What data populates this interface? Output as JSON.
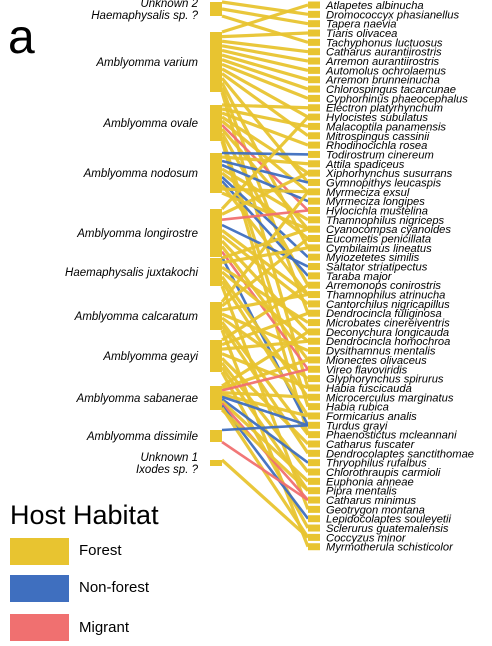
{
  "panel_label": "a",
  "legend": {
    "title": "Host Habitat",
    "items": [
      {
        "label": "Forest",
        "color": "#E8C430"
      },
      {
        "label": "Non-forest",
        "color": "#3F6FBF"
      },
      {
        "label": "Migrant",
        "color": "#F07070"
      }
    ]
  },
  "ticks": [
    {
      "id": "unk2",
      "lines": [
        "Unknown 2",
        "Haemaphysalis sp. ?"
      ]
    },
    {
      "id": "varium",
      "lines": [
        "Amblyomma varium"
      ]
    },
    {
      "id": "ovale",
      "lines": [
        "Amblyomma ovale"
      ]
    },
    {
      "id": "nodosum",
      "lines": [
        "Amblyomma nodosum"
      ]
    },
    {
      "id": "longirostre",
      "lines": [
        "Amblyomma longirostre"
      ]
    },
    {
      "id": "juxtakochi",
      "lines": [
        "Haemaphysalis juxtakochi"
      ]
    },
    {
      "id": "calcaratum",
      "lines": [
        "Amblyomma calcaratum"
      ]
    },
    {
      "id": "geayi",
      "lines": [
        "Amblyomma geayi"
      ]
    },
    {
      "id": "sabanerae",
      "lines": [
        "Amblyomma sabanerae"
      ]
    },
    {
      "id": "dissimile",
      "lines": [
        "Amblyomma dissimile"
      ]
    },
    {
      "id": "unk1",
      "lines": [
        "Unknown 1",
        "Ixodes sp. ?"
      ]
    }
  ],
  "hosts": [
    "Atlapetes albinucha",
    "Dromococcyx phasianellus",
    "Tapera naevia",
    "Tiaris olivacea",
    "Tachyphonus luctuosus",
    "Catharus aurantiirostris",
    "Arremon aurantiirostris",
    "Automolus ochrolaemus",
    "Arremon brunneinucha",
    "Chlorospingus tacarcunae",
    "Cyphorhinus phaeocephalus",
    "Electron platyrhynchum",
    "Hylocistes subulatus",
    "Malacoptila panamensis",
    "Mitrospingus cassinii",
    "Rhodinocichla rosea",
    "Todirostrum cinereum",
    "Attila spadiceus",
    "Xiphorhynchus susurrans",
    "Gymnopithys leucaspis",
    "Myrmeciza exsul",
    "Myrmeciza longipes",
    "Hylocichla mustelina",
    "Thamnophilus nigriceps",
    "Cyanocompsa cyanoides",
    "Eucometis penicillata",
    "Cymbilaimus lineatus",
    "Myiozetetes similis",
    "Saltator striatipectus",
    "Taraba major",
    "Arremonops conirostris",
    "Thamnophilus atrinucha",
    "Cantorchilus nigricapillus",
    "Dendrocincla fuliginosa",
    "Microbates cinereiventris",
    "Deconychura longicauda",
    "Dendrocincla homochroa",
    "Dysithamnus mentalis",
    "Mionectes olivaceus",
    "Vireo flavoviridis",
    "Glyphorynchus spirurus",
    "Habia fuscicauda",
    "Microcerculus marginatus",
    "Habia rubica",
    "Formicarius analis",
    "Turdus grayi",
    "Phaenostictus mcleannani",
    "Catharus fuscater",
    "Dendrocolaptes sanctithomae",
    "Thryophilus rufalbus",
    "Chlorothraupis carmioli",
    "Euphonia anneae",
    "Pipra mentalis",
    "Catharus minimus",
    "Geotrygon montana",
    "Lepidocolaptes souleyetii",
    "Sclerurus guatemalensis",
    "Coccyzus minor",
    "Myrmotherula schisticolor"
  ],
  "links": [
    {
      "t": "unk2",
      "h": 1,
      "c": "F"
    },
    {
      "t": "unk2",
      "h": 2,
      "c": "F"
    },
    {
      "t": "unk2",
      "h": 4,
      "c": "F"
    },
    {
      "t": "varium",
      "h": 0,
      "c": "F"
    },
    {
      "t": "varium",
      "h": 3,
      "c": "F"
    },
    {
      "t": "varium",
      "h": 5,
      "c": "F"
    },
    {
      "t": "varium",
      "h": 6,
      "c": "F"
    },
    {
      "t": "varium",
      "h": 7,
      "c": "F"
    },
    {
      "t": "varium",
      "h": 8,
      "c": "F"
    },
    {
      "t": "varium",
      "h": 9,
      "c": "F"
    },
    {
      "t": "varium",
      "h": 10,
      "c": "F"
    },
    {
      "t": "varium",
      "h": 12,
      "c": "F"
    },
    {
      "t": "varium",
      "h": 14,
      "c": "F"
    },
    {
      "t": "varium",
      "h": 19,
      "c": "F"
    },
    {
      "t": "varium",
      "h": 26,
      "c": "F"
    },
    {
      "t": "varium",
      "h": 33,
      "c": "F"
    },
    {
      "t": "varium",
      "h": 41,
      "c": "F"
    },
    {
      "t": "ovale",
      "h": 11,
      "c": "F"
    },
    {
      "t": "ovale",
      "h": 13,
      "c": "F"
    },
    {
      "t": "ovale",
      "h": 15,
      "c": "F"
    },
    {
      "t": "ovale",
      "h": 18,
      "c": "F"
    },
    {
      "t": "ovale",
      "h": 20,
      "c": "F"
    },
    {
      "t": "ovale",
      "h": 22,
      "c": "M"
    },
    {
      "t": "ovale",
      "h": 24,
      "c": "F"
    },
    {
      "t": "ovale",
      "h": 30,
      "c": "F"
    },
    {
      "t": "ovale",
      "h": 43,
      "c": "F"
    },
    {
      "t": "ovale",
      "h": 46,
      "c": "F"
    },
    {
      "t": "nodosum",
      "h": 16,
      "c": "N"
    },
    {
      "t": "nodosum",
      "h": 17,
      "c": "F"
    },
    {
      "t": "nodosum",
      "h": 19,
      "c": "N"
    },
    {
      "t": "nodosum",
      "h": 21,
      "c": "N"
    },
    {
      "t": "nodosum",
      "h": 23,
      "c": "F"
    },
    {
      "t": "nodosum",
      "h": 25,
      "c": "F"
    },
    {
      "t": "nodosum",
      "h": 27,
      "c": "N"
    },
    {
      "t": "nodosum",
      "h": 29,
      "c": "N"
    },
    {
      "t": "nodosum",
      "h": 31,
      "c": "F"
    },
    {
      "t": "nodosum",
      "h": 20,
      "c": "F"
    },
    {
      "t": "nodosum",
      "h": 24,
      "c": "F"
    },
    {
      "t": "longirostre",
      "h": 12,
      "c": "F"
    },
    {
      "t": "longirostre",
      "h": 18,
      "c": "F"
    },
    {
      "t": "longirostre",
      "h": 22,
      "c": "M"
    },
    {
      "t": "longirostre",
      "h": 28,
      "c": "N"
    },
    {
      "t": "longirostre",
      "h": 31,
      "c": "F"
    },
    {
      "t": "longirostre",
      "h": 32,
      "c": "F"
    },
    {
      "t": "longirostre",
      "h": 35,
      "c": "F"
    },
    {
      "t": "longirostre",
      "h": 38,
      "c": "F"
    },
    {
      "t": "longirostre",
      "h": 39,
      "c": "M"
    },
    {
      "t": "longirostre",
      "h": 45,
      "c": "N"
    },
    {
      "t": "juxtakochi",
      "h": 24,
      "c": "F"
    },
    {
      "t": "juxtakochi",
      "h": 26,
      "c": "F"
    },
    {
      "t": "juxtakochi",
      "h": 34,
      "c": "F"
    },
    {
      "t": "juxtakochi",
      "h": 36,
      "c": "F"
    },
    {
      "t": "juxtakochi",
      "h": 42,
      "c": "F"
    },
    {
      "t": "juxtakochi",
      "h": 44,
      "c": "F"
    },
    {
      "t": "juxtakochi",
      "h": 54,
      "c": "F"
    },
    {
      "t": "calcaratum",
      "h": 20,
      "c": "F"
    },
    {
      "t": "calcaratum",
      "h": 25,
      "c": "F"
    },
    {
      "t": "calcaratum",
      "h": 31,
      "c": "F"
    },
    {
      "t": "calcaratum",
      "h": 37,
      "c": "F"
    },
    {
      "t": "calcaratum",
      "h": 40,
      "c": "F"
    },
    {
      "t": "calcaratum",
      "h": 46,
      "c": "F"
    },
    {
      "t": "calcaratum",
      "h": 48,
      "c": "F"
    },
    {
      "t": "calcaratum",
      "h": 58,
      "c": "F"
    },
    {
      "t": "geayi",
      "h": 30,
      "c": "F"
    },
    {
      "t": "geayi",
      "h": 33,
      "c": "F"
    },
    {
      "t": "geayi",
      "h": 36,
      "c": "F"
    },
    {
      "t": "geayi",
      "h": 41,
      "c": "F"
    },
    {
      "t": "geayi",
      "h": 47,
      "c": "F"
    },
    {
      "t": "geayi",
      "h": 50,
      "c": "F"
    },
    {
      "t": "geayi",
      "h": 52,
      "c": "F"
    },
    {
      "t": "geayi",
      "h": 56,
      "c": "F"
    },
    {
      "t": "sabanerae",
      "h": 35,
      "c": "F"
    },
    {
      "t": "sabanerae",
      "h": 38,
      "c": "F"
    },
    {
      "t": "sabanerae",
      "h": 39,
      "c": "M"
    },
    {
      "t": "sabanerae",
      "h": 42,
      "c": "F"
    },
    {
      "t": "sabanerae",
      "h": 44,
      "c": "F"
    },
    {
      "t": "sabanerae",
      "h": 45,
      "c": "N"
    },
    {
      "t": "sabanerae",
      "h": 49,
      "c": "N"
    },
    {
      "t": "sabanerae",
      "h": 51,
      "c": "F"
    },
    {
      "t": "sabanerae",
      "h": 53,
      "c": "M"
    },
    {
      "t": "sabanerae",
      "h": 55,
      "c": "N"
    },
    {
      "t": "sabanerae",
      "h": 57,
      "c": "F"
    },
    {
      "t": "sabanerae",
      "h": 52,
      "c": "F"
    },
    {
      "t": "dissimile",
      "h": 45,
      "c": "N"
    },
    {
      "t": "dissimile",
      "h": 53,
      "c": "M"
    },
    {
      "t": "unk1",
      "h": 57,
      "c": "F"
    }
  ]
}
